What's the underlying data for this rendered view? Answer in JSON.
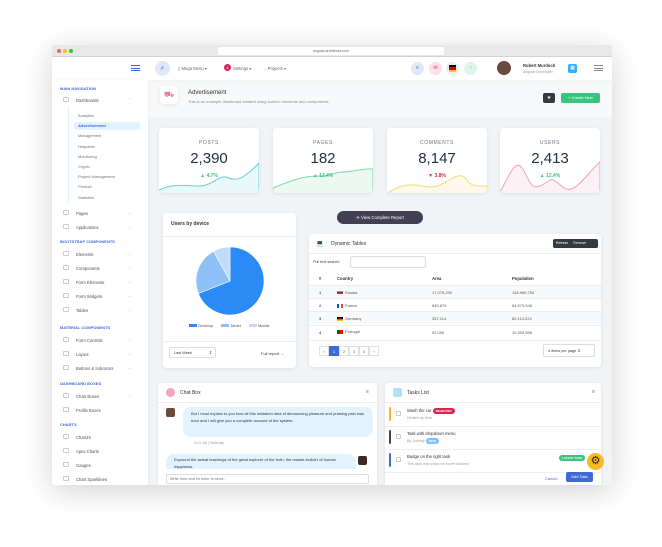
{
  "browser": {
    "url": "angular.architectui.com"
  },
  "header": {
    "search_icon": "search-icon",
    "mega_menu": "Mega Menu",
    "settings": "Settings",
    "settings_badge": "4",
    "projects": "Projects",
    "user_name": "Robert Murdoch",
    "user_role": "Angular Developer"
  },
  "sidebar": {
    "sections": [
      {
        "title": "Main Navigation"
      },
      {
        "title": "Bootstrap Components"
      },
      {
        "title": "Material Components"
      },
      {
        "title": "Dashboard Boxes"
      },
      {
        "title": "Charts"
      }
    ],
    "dashboards": "Dashboards",
    "dashboard_items": [
      "Analytics",
      "Advertisement",
      "Management",
      "Helpdesk",
      "Monitoring",
      "Crypto",
      "Project Management",
      "Product",
      "Statistics"
    ],
    "pages": "Pages",
    "applications": "Applications",
    "bootstrap": [
      "Elements",
      "Components",
      "Form Elements",
      "Form Widgets",
      "Tables"
    ],
    "material": [
      "Form Controls",
      "Layout",
      "Buttons & Indicators"
    ],
    "boxes": [
      "Chart Boxes",
      "Profile Boxes"
    ],
    "charts": [
      "ChartJS",
      "Apex Charts",
      "Gauges",
      "Chart Sparklines"
    ]
  },
  "page": {
    "title": "Advertisement",
    "subtitle": "This is an example dashboard created using build-in elements and components.",
    "create_new": "Create New"
  },
  "stats": [
    {
      "label": "POSTS",
      "value": "2,390",
      "change": "4.7%",
      "dir": "up",
      "color": "#6ccfd6"
    },
    {
      "label": "PAGES",
      "value": "182",
      "change": "12.4%",
      "dir": "up",
      "color": "#7ed8a6"
    },
    {
      "label": "COMMENTS",
      "value": "8,147",
      "change": "3.8%",
      "dir": "down",
      "color": "#f7d774"
    },
    {
      "label": "USERS",
      "value": "2,413",
      "change": "12.4%",
      "dir": "up",
      "color": "#eca3b7"
    }
  ],
  "view_report": "View Complete Report",
  "device_chart": {
    "title": "Users by device",
    "legend": [
      "Desktop",
      "Tablet",
      "Mobile"
    ],
    "colors": [
      "#2a8af6",
      "#8fc1f8",
      "#c1dcfb"
    ],
    "values": [
      69,
      23,
      8
    ],
    "period": "Last Week",
    "full_report": "Full report →"
  },
  "table": {
    "title": "Dynamic Tables",
    "refresh": "Refresh",
    "remove": "Remove",
    "search_label": "Full text search:",
    "columns": [
      "#",
      "Country",
      "Area",
      "Population"
    ],
    "rows": [
      [
        "1",
        "Russia",
        "17,075,200",
        "146,989,754"
      ],
      [
        "2",
        "France",
        "640,679",
        "64,979,548"
      ],
      [
        "3",
        "Germany",
        "357,114",
        "82,114,224"
      ],
      [
        "4",
        "Portugal",
        "92,090",
        "10,329,506"
      ]
    ],
    "pages": [
      "«",
      "1",
      "2",
      "3",
      "4",
      "»"
    ],
    "per_page": "4 items per page"
  },
  "chat": {
    "title": "Chat Box",
    "msg1": "But I must explain to you how all this mistaken idea of denouncing pleasure and praising pain was born and I will give you a complete account of the system.",
    "time1": "11:01 AM | Yesterday",
    "msg2": "Expound the actual teachings of the great explorer of the truth, the master-builder of human happiness.",
    "placeholder": "Write here and hit enter to send..."
  },
  "tasks": {
    "title": "Tasks List",
    "items": [
      {
        "title": "Wash the car",
        "sub": "Written by Bob",
        "badge": "REJECTED",
        "color": "#f7b924",
        "badge_color": "#d92550"
      },
      {
        "title": "Task with dropdown menu",
        "sub": "By Johnny",
        "badge": "NEW",
        "color": "#444054",
        "badge_color": "#78c3fb"
      },
      {
        "title": "Badge on the right task",
        "sub": "This task has show on hover actions!",
        "badge": "LATEST TASK",
        "color": "#3f6ad8",
        "badge_color": "#3ac47d"
      }
    ],
    "cancel": "Cancel",
    "add": "Add Task"
  }
}
